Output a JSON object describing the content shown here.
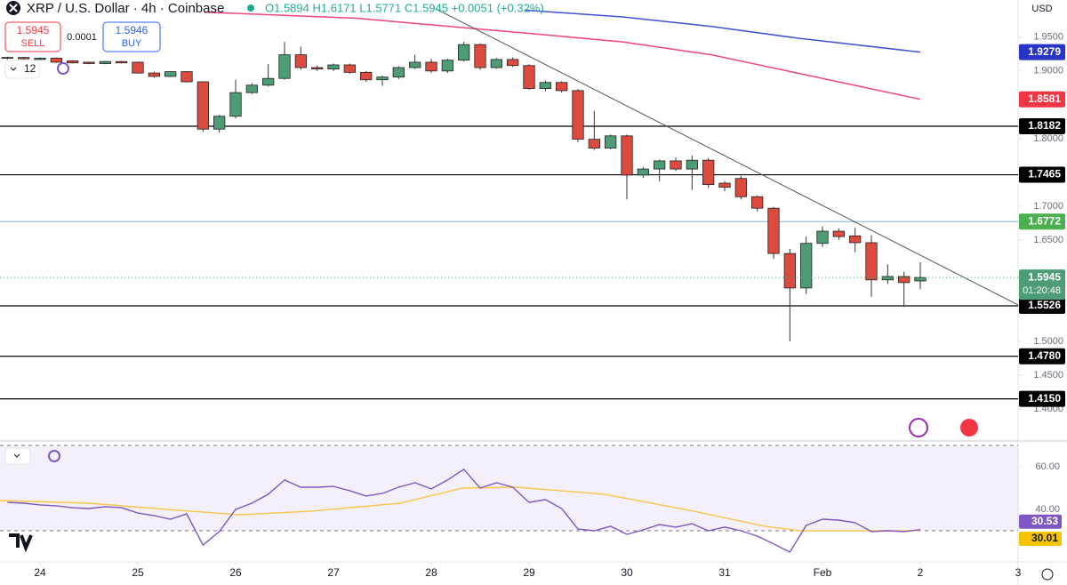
{
  "header": {
    "title": "XRP / U.S. Dollar · 4h · Coinbase",
    "ohlc": "O1.5894 H1.6171 L1.5771 C1.5945 +0.0051 (+0.32%)",
    "sell_price": "1.5945",
    "sell": "SELL",
    "spread": "0.0001",
    "buy_price": "1.5946",
    "buy": "BUY",
    "indicators": "12"
  },
  "chart_data": [
    {
      "type": "candlestick",
      "y_label": "USD",
      "x": [
        23.6667,
        23.8333,
        24,
        24.1667,
        24.3333,
        24.5,
        24.6667,
        24.8333,
        25,
        25.1667,
        25.3333,
        25.5,
        25.6667,
        25.8333,
        26,
        26.1667,
        26.3333,
        26.5,
        26.6667,
        26.8333,
        27,
        27.1667,
        27.3333,
        27.5,
        27.6667,
        27.8333,
        28,
        28.1667,
        28.3333,
        28.5,
        28.6667,
        28.8333,
        29,
        29.1667,
        29.3333,
        29.5,
        29.6667,
        29.8333,
        30,
        30.1667,
        30.3333,
        30.5,
        30.6667,
        30.8333,
        31,
        31.1667,
        31.3333,
        31.5,
        31.6667,
        31.8333,
        32,
        32.1667,
        32.3333,
        32.5,
        32.6667,
        32.8333,
        33
      ],
      "open": [
        1.919,
        1.92,
        1.917,
        1.919,
        1.915,
        1.913,
        1.911,
        1.914,
        1.913,
        1.897,
        1.892,
        1.899,
        1.884,
        1.814,
        1.833,
        1.868,
        1.879,
        1.889,
        1.924,
        1.905,
        1.903,
        1.909,
        1.898,
        1.887,
        1.891,
        1.905,
        1.913,
        1.9,
        1.916,
        1.939,
        1.905,
        1.917,
        1.908,
        1.874,
        1.883,
        1.871,
        1.799,
        1.786,
        1.804,
        1.746,
        1.755,
        1.767,
        1.755,
        1.768,
        1.734,
        1.741,
        1.714,
        1.697,
        1.63,
        1.579,
        1.645,
        1.663,
        1.656,
        1.646,
        1.591,
        1.596,
        1.5894
      ],
      "high": [
        1.921,
        1.921,
        1.92,
        1.92,
        1.916,
        1.914,
        1.915,
        1.915,
        1.914,
        1.899,
        1.9,
        1.9,
        1.885,
        1.835,
        1.887,
        1.882,
        1.91,
        1.943,
        1.936,
        1.908,
        1.911,
        1.911,
        1.9,
        1.893,
        1.907,
        1.924,
        1.918,
        1.918,
        1.943,
        1.941,
        1.919,
        1.92,
        1.91,
        1.886,
        1.885,
        1.873,
        1.841,
        1.806,
        1.806,
        1.758,
        1.769,
        1.772,
        1.775,
        1.771,
        1.737,
        1.745,
        1.716,
        1.699,
        1.637,
        1.655,
        1.67,
        1.667,
        1.668,
        1.657,
        1.614,
        1.603,
        1.6171
      ],
      "low": [
        1.917,
        1.917,
        1.916,
        1.912,
        1.911,
        1.91,
        1.91,
        1.911,
        1.896,
        1.89,
        1.891,
        1.883,
        1.81,
        1.809,
        1.83,
        1.866,
        1.877,
        1.887,
        1.902,
        1.9,
        1.9,
        1.896,
        1.884,
        1.878,
        1.888,
        1.903,
        1.897,
        1.897,
        1.914,
        1.902,
        1.903,
        1.906,
        1.872,
        1.87,
        1.868,
        1.795,
        1.783,
        1.784,
        1.71,
        1.742,
        1.737,
        1.752,
        1.724,
        1.727,
        1.722,
        1.71,
        1.692,
        1.622,
        1.5,
        1.57,
        1.64,
        1.65,
        1.632,
        1.566,
        1.585,
        1.551,
        1.5771
      ],
      "close": [
        1.92,
        1.918,
        1.919,
        1.913,
        1.912,
        1.911,
        1.914,
        1.912,
        1.897,
        1.892,
        1.899,
        1.884,
        1.814,
        1.833,
        1.868,
        1.879,
        1.889,
        1.924,
        1.905,
        1.903,
        1.909,
        1.898,
        1.887,
        1.891,
        1.905,
        1.913,
        1.9,
        1.916,
        1.939,
        1.905,
        1.917,
        1.908,
        1.874,
        1.883,
        1.871,
        1.799,
        1.786,
        1.804,
        1.746,
        1.755,
        1.767,
        1.755,
        1.768,
        1.732,
        1.728,
        1.714,
        1.697,
        1.63,
        1.579,
        1.645,
        1.663,
        1.655,
        1.646,
        1.591,
        1.596,
        1.587,
        1.5945
      ],
      "up_color": "#4e9c75",
      "down_color": "#dd4b3e",
      "countdown": "01:20:48",
      "xlim": [
        23.5909,
        34
      ],
      "ylim": [
        1.354,
        2.005
      ],
      "yticks": [
        {
          "value": 1.4,
          "label": "1.4000"
        },
        {
          "value": 1.45,
          "label": "1.4500"
        },
        {
          "value": 1.5,
          "label": "1.5000"
        },
        {
          "value": 1.65,
          "label": "1.6500"
        },
        {
          "value": 1.7,
          "label": "1.7000"
        },
        {
          "value": 1.8,
          "label": "1.8000"
        },
        {
          "value": 1.9,
          "label": "1.9000"
        },
        {
          "value": 1.95,
          "label": "1.9500"
        }
      ],
      "grid": false,
      "moving_averages": [
        {
          "color": "#3f51d9",
          "x": [
            28.9545,
            29.9545,
            30.8636,
            31.7727,
            33
          ],
          "values": [
            1.99,
            1.98,
            1.966,
            1.948,
            1.9279
          ]
        },
        {
          "color": "#f0457d",
          "x": [
            25.6818,
            27.2273,
            29.0455,
            29.9545,
            30.8636,
            31.7727,
            33
          ],
          "values": [
            1.987,
            1.978,
            1.955,
            1.943,
            1.924,
            1.896,
            1.8581
          ]
        }
      ],
      "ma_label_colors": [
        "#2833c8",
        "#f23645"
      ],
      "trendline": {
        "color": "#555555",
        "x": [
          28.0455,
          34
        ],
        "values": [
          1.992,
          1.554
        ]
      },
      "levels": [
        {
          "value": 1.8182,
          "color": "#000000",
          "label_color": "#000000"
        },
        {
          "value": 1.7465,
          "color": "#000000",
          "label_color": "#000000"
        },
        {
          "value": 1.6772,
          "color": "#8cc6d6",
          "label_color": "#4caf50"
        },
        {
          "value": 1.5526,
          "color": "#000000",
          "label_color": "#000000"
        },
        {
          "value": 1.478,
          "label": "1.4780",
          "color": "#000000",
          "label_color": "#000000"
        },
        {
          "value": 1.415,
          "label": "1.4150",
          "color": "#000000",
          "label_color": "#000000"
        }
      ]
    },
    {
      "type": "line",
      "x": [
        23.6667,
        23.8333,
        24,
        24.1667,
        24.3333,
        24.5,
        24.6667,
        24.8333,
        25,
        25.1667,
        25.3333,
        25.5,
        25.6667,
        25.8333,
        26,
        26.1667,
        26.3333,
        26.5,
        26.6667,
        26.8333,
        27,
        27.1667,
        27.3333,
        27.5,
        27.6667,
        27.8333,
        28,
        28.1667,
        28.3333,
        28.5,
        28.6667,
        28.8333,
        29,
        29.1667,
        29.3333,
        29.5,
        29.6667,
        29.8333,
        30,
        30.1667,
        30.3333,
        30.5,
        30.6667,
        30.8333,
        31,
        31.1667,
        31.3333,
        31.5,
        31.6667,
        31.8333,
        32,
        32.1667,
        32.3333,
        32.5,
        32.6667,
        32.8333,
        33
      ],
      "series": [
        {
          "color": "#7e57c2",
          "label_color": "#7e57c2",
          "values": [
            43.3,
            42.9,
            42.1,
            41.7,
            40.8,
            40.4,
            41.3,
            40.8,
            38.3,
            37.1,
            35.4,
            37.9,
            23.3,
            29.6,
            40.0,
            42.9,
            47.1,
            53.8,
            50.4,
            50.4,
            50.8,
            48.8,
            46.3,
            47.5,
            50.4,
            52.5,
            49.6,
            53.8,
            58.8,
            50.0,
            52.5,
            50.4,
            43.3,
            44.6,
            40.4,
            30.8,
            30.0,
            32.1,
            28.3,
            30.4,
            32.9,
            31.7,
            33.3,
            30.0,
            31.7,
            30.0,
            27.5,
            23.8,
            20.0,
            32.5,
            35.4,
            35.0,
            33.8,
            29.6,
            30.0,
            29.6,
            30.53
          ]
        },
        {
          "color": "#f7c548",
          "label_color": "#f5c400",
          "x": [
            23.5909,
            24.5,
            25.4091,
            26.0455,
            26.7727,
            27.6818,
            28.3182,
            28.8636,
            29.7727,
            30.6818,
            31.4091,
            31.7727,
            32.3182,
            33
          ],
          "values": [
            44.17,
            42.9,
            39.6,
            37.5,
            39.2,
            42.9,
            50.0,
            50.4,
            47.1,
            39.2,
            32.1,
            30.0,
            30.0,
            30.01
          ]
        }
      ],
      "levels": [
        30,
        70
      ],
      "band_color": "#7e57c2",
      "xlim": [
        23.5909,
        34
      ],
      "ylim": [
        15.4,
        71.25
      ],
      "yticks": [
        {
          "value": 40,
          "label": "40.00"
        },
        {
          "value": 60,
          "label": "60.00"
        }
      ],
      "xticks": [
        24,
        25,
        26,
        27,
        28,
        29,
        30,
        31,
        {
          "value": 32,
          "label": "Feb"
        },
        {
          "value": 33,
          "label": "2"
        },
        {
          "value": 34,
          "label": "3"
        }
      ]
    }
  ]
}
